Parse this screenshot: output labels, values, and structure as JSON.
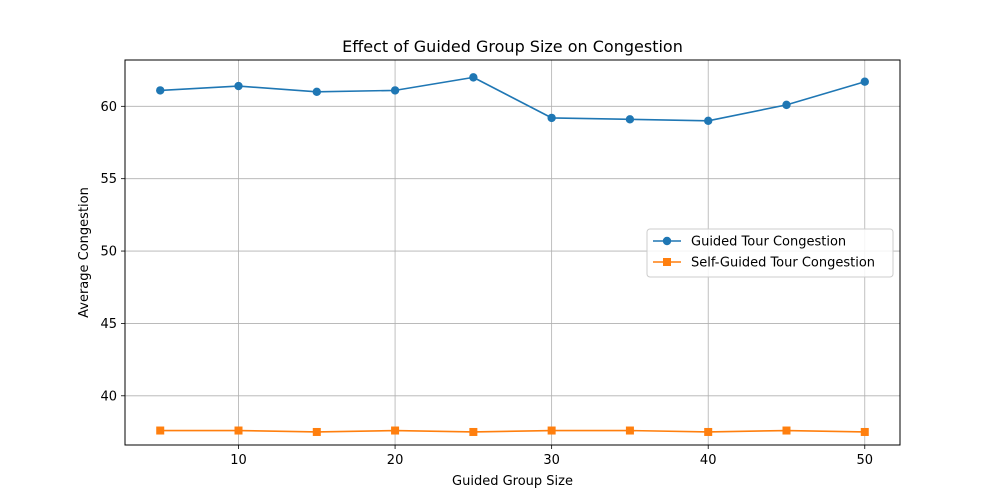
{
  "chart_data": {
    "type": "line",
    "title": "Effect of Guided Group Size on Congestion",
    "xlabel": "Guided Group Size",
    "ylabel": "Average Congestion",
    "x": [
      5,
      10,
      15,
      20,
      25,
      30,
      35,
      40,
      45,
      50
    ],
    "xlim": [
      2.75,
      52.25
    ],
    "ylim": [
      36.6,
      63.2
    ],
    "xticks": [
      10,
      20,
      30,
      40,
      50
    ],
    "yticks": [
      40,
      45,
      50,
      55,
      60
    ],
    "grid": true,
    "legend_position": "center-right",
    "series": [
      {
        "name": "Guided Tour Congestion",
        "color": "#1f77b4",
        "marker": "circle",
        "values": [
          61.1,
          61.4,
          61.0,
          61.1,
          62.0,
          59.2,
          59.1,
          59.0,
          60.1,
          61.7
        ]
      },
      {
        "name": "Self-Guided Tour Congestion",
        "color": "#ff7f0e",
        "marker": "square",
        "values": [
          37.6,
          37.6,
          37.5,
          37.6,
          37.5,
          37.6,
          37.6,
          37.5,
          37.6,
          37.5
        ]
      }
    ]
  }
}
